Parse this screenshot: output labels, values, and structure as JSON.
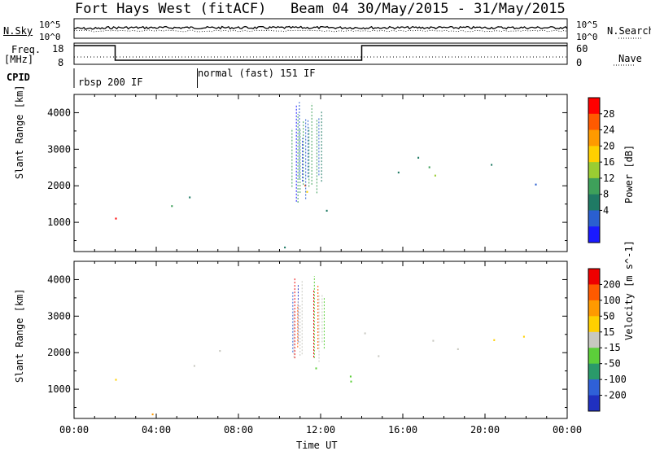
{
  "header": {
    "station": "Fort Hays West (fitACF)",
    "beam_date": "Beam 04 30/May/2015 - 31/May/2015"
  },
  "top_panels": {
    "nsky_label": "N.Sky",
    "nsearch_label": "N.Search",
    "freq_label_1": "Freq.",
    "freq_label_2": "[MHz]",
    "nave_label": "Nave",
    "cpid_label": "CPID",
    "noise_left_ticks": [
      "10^5",
      "10^0"
    ],
    "noise_right_ticks": [
      "10^5",
      "10^0"
    ],
    "freq_ticks": [
      "18",
      "8"
    ],
    "nave_ticks": [
      "60",
      "0"
    ],
    "cpid_mode_1": "rbsp 200 IF",
    "cpid_mode_2": "normal (fast) 151 IF"
  },
  "chart_data": [
    {
      "type": "heatmap",
      "title": "",
      "xlabel": "Time UT",
      "ylabel": "Slant Range [km]",
      "x_ticks": [
        "00:00",
        "04:00",
        "08:00",
        "12:00",
        "16:00",
        "20:00",
        "00:00"
      ],
      "xlim_hours": [
        0,
        24
      ],
      "y_ticks": [
        1000,
        2000,
        3000,
        4000
      ],
      "ylim": [
        200,
        4500
      ],
      "colorbar": {
        "label": "Power [dB]",
        "ticks": [
          "28",
          "24",
          "20",
          "16",
          "12",
          "8",
          "4"
        ],
        "colors": [
          "#1a1aff",
          "#2a5fd0",
          "#1f7a64",
          "#3ea05a",
          "#9acd32",
          "#ffd000",
          "#ff9a00",
          "#ff5a00",
          "#ff0000"
        ]
      }
    },
    {
      "type": "heatmap",
      "title": "",
      "xlabel": "Time UT",
      "ylabel": "Slant Range [km]",
      "x_ticks": [
        "00:00",
        "04:00",
        "08:00",
        "12:00",
        "16:00",
        "20:00",
        "00:00"
      ],
      "xlim_hours": [
        0,
        24
      ],
      "y_ticks": [
        1000,
        2000,
        3000,
        4000
      ],
      "ylim": [
        200,
        4500
      ],
      "colorbar": {
        "label": "Velocity [m s^-1]",
        "ticks": [
          "200",
          "100",
          "50",
          "15",
          "-15",
          "-50",
          "-100",
          "-200"
        ],
        "colors": [
          "#2030c0",
          "#2f60d8",
          "#2a9a6a",
          "#5ccf3a",
          "#c8c8c0",
          "#ffd000",
          "#ff9a00",
          "#ff5a00",
          "#ee0000"
        ]
      }
    }
  ]
}
